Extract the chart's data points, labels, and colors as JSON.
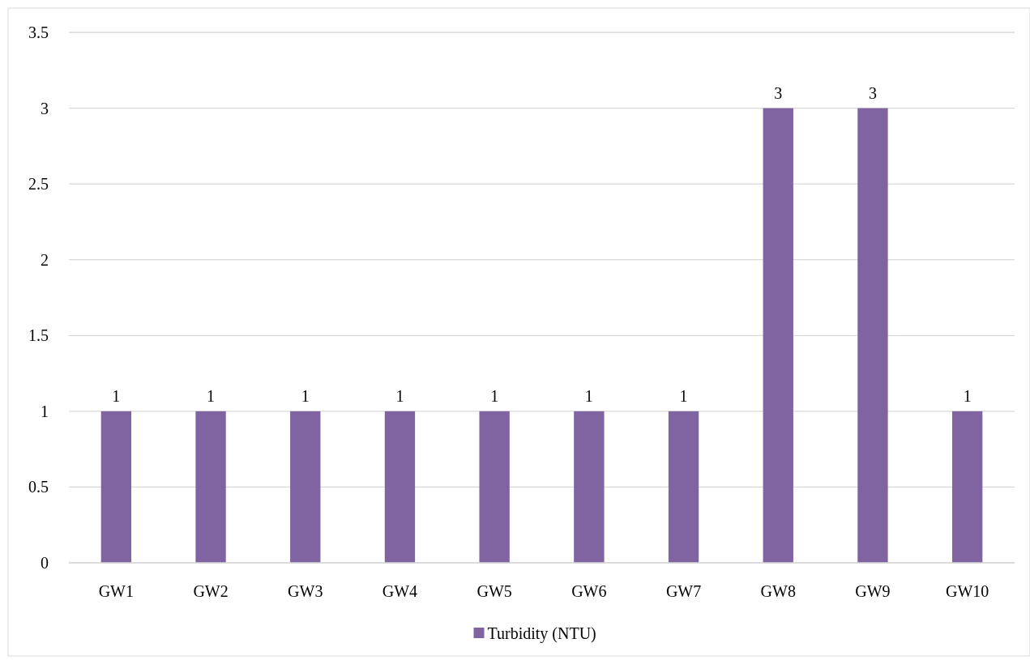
{
  "chart_data": {
    "type": "bar",
    "categories": [
      "GW1",
      "GW2",
      "GW3",
      "GW4",
      "GW5",
      "GW6",
      "GW7",
      "GW8",
      "GW9",
      "GW10"
    ],
    "series": [
      {
        "name": "Turbidity (NTU)",
        "color": "#8064a2",
        "values": [
          1,
          1,
          1,
          1,
          1,
          1,
          1,
          3,
          3,
          1
        ]
      }
    ],
    "ylim": [
      0,
      3.5
    ],
    "yticks": [
      0,
      0.5,
      1,
      1.5,
      2,
      2.5,
      3,
      3.5
    ],
    "grid": "y",
    "legend": "bottom",
    "data_labels": true
  }
}
